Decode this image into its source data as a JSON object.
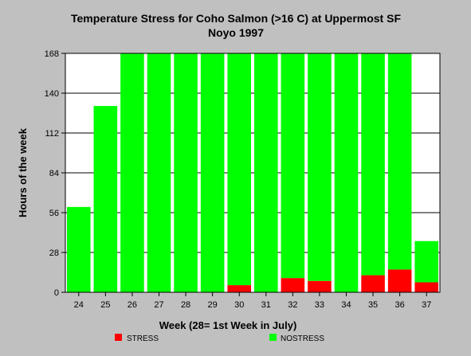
{
  "chart_data": {
    "type": "bar",
    "stacked": true,
    "title": "Temperature Stress for Coho Salmon (>16 C) at Uppermost SF",
    "subtitle": "Noyo 1997",
    "xlabel": "Week (28= 1st Week in July)",
    "ylabel": "Hours of the week",
    "categories": [
      "24",
      "25",
      "26",
      "27",
      "28",
      "29",
      "30",
      "31",
      "32",
      "33",
      "34",
      "35",
      "36",
      "37"
    ],
    "yticks": [
      0,
      28,
      56,
      84,
      112,
      140,
      168
    ],
    "ylim": [
      0,
      168
    ],
    "grid": true,
    "legend_position": "bottom",
    "series": [
      {
        "name": "STRESS",
        "color": "#ff0000",
        "values": [
          0,
          0,
          0,
          0,
          0,
          0,
          5,
          0,
          10,
          8,
          0,
          12,
          16,
          7
        ]
      },
      {
        "name": "NOSTRESS",
        "color": "#00ff00",
        "values": [
          60,
          131,
          168,
          168,
          168,
          168,
          163,
          168,
          158,
          160,
          168,
          156,
          152,
          29
        ]
      }
    ]
  }
}
